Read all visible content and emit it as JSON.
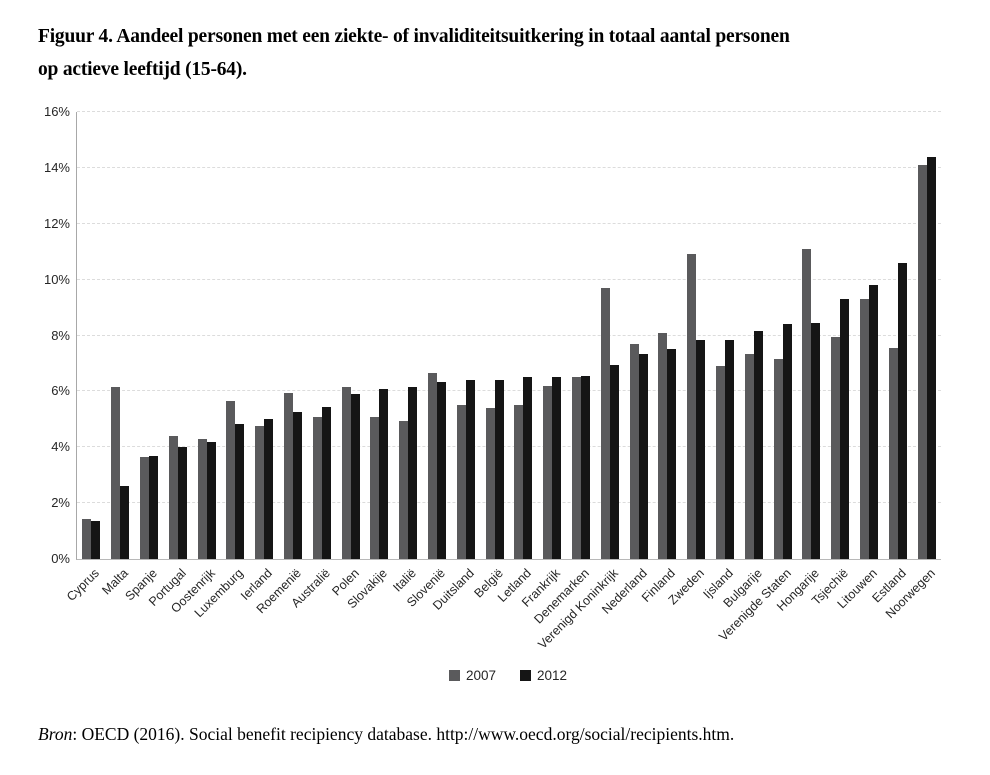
{
  "figure": {
    "title_line1": "Figuur 4. Aandeel personen met een ziekte- of invaliditeitsuitkering in totaal aantal personen",
    "title_line2": "op actieve leeftijd (15-64).",
    "source_label": "Bron",
    "source_text": ": OECD (2016). Social benefit recipiency database. http://www.oecd.org/social/recipients.htm."
  },
  "chart_data": {
    "type": "bar",
    "title": "Figuur 4. Aandeel personen met een ziekte- of invaliditeitsuitkering in totaal aantal personen op actieve leeftijd (15-64).",
    "categories": [
      "Cyprus",
      "Malta",
      "Spanje",
      "Portugal",
      "Oostenrijk",
      "Luxemburg",
      "Ierland",
      "Roemenië",
      "Australië",
      "Polen",
      "Slovakije",
      "Italië",
      "Slovenië",
      "Duitsland",
      "België",
      "Letland",
      "Frankrijk",
      "Denemarken",
      "Verenigd Koninkrijk",
      "Nederland",
      "Finland",
      "Zweden",
      "Ijsland",
      "Bulgarije",
      "Verenigde Staten",
      "Hongarije",
      "Tsjechië",
      "Litouwen",
      "Estland",
      "Noorwegen"
    ],
    "series": [
      {
        "name": "2007",
        "color": "#5a5a5c",
        "values": [
          1.45,
          6.15,
          3.65,
          4.4,
          4.3,
          5.65,
          4.75,
          5.95,
          5.1,
          6.15,
          5.1,
          4.95,
          6.65,
          5.5,
          5.4,
          5.5,
          6.2,
          6.5,
          9.7,
          7.7,
          8.1,
          10.9,
          6.9,
          7.35,
          7.15,
          11.1,
          7.95,
          9.3,
          7.55,
          14.1
        ]
      },
      {
        "name": "2012",
        "color": "#151515",
        "values": [
          1.35,
          2.6,
          3.7,
          4.0,
          4.2,
          4.85,
          5.0,
          5.25,
          5.45,
          5.9,
          6.1,
          6.15,
          6.35,
          6.4,
          6.4,
          6.5,
          6.5,
          6.55,
          6.95,
          7.35,
          7.5,
          7.85,
          7.85,
          8.15,
          8.4,
          8.45,
          9.3,
          9.8,
          10.6,
          14.4
        ]
      }
    ],
    "ylim": [
      0,
      16
    ],
    "ytick_step": 2,
    "ytick_labels": [
      "0%",
      "2%",
      "4%",
      "6%",
      "8%",
      "10%",
      "12%",
      "14%",
      "16%"
    ],
    "ylabel": "",
    "xlabel": "",
    "grid": "horizontal-dashed",
    "legend_position": "bottom-center"
  }
}
